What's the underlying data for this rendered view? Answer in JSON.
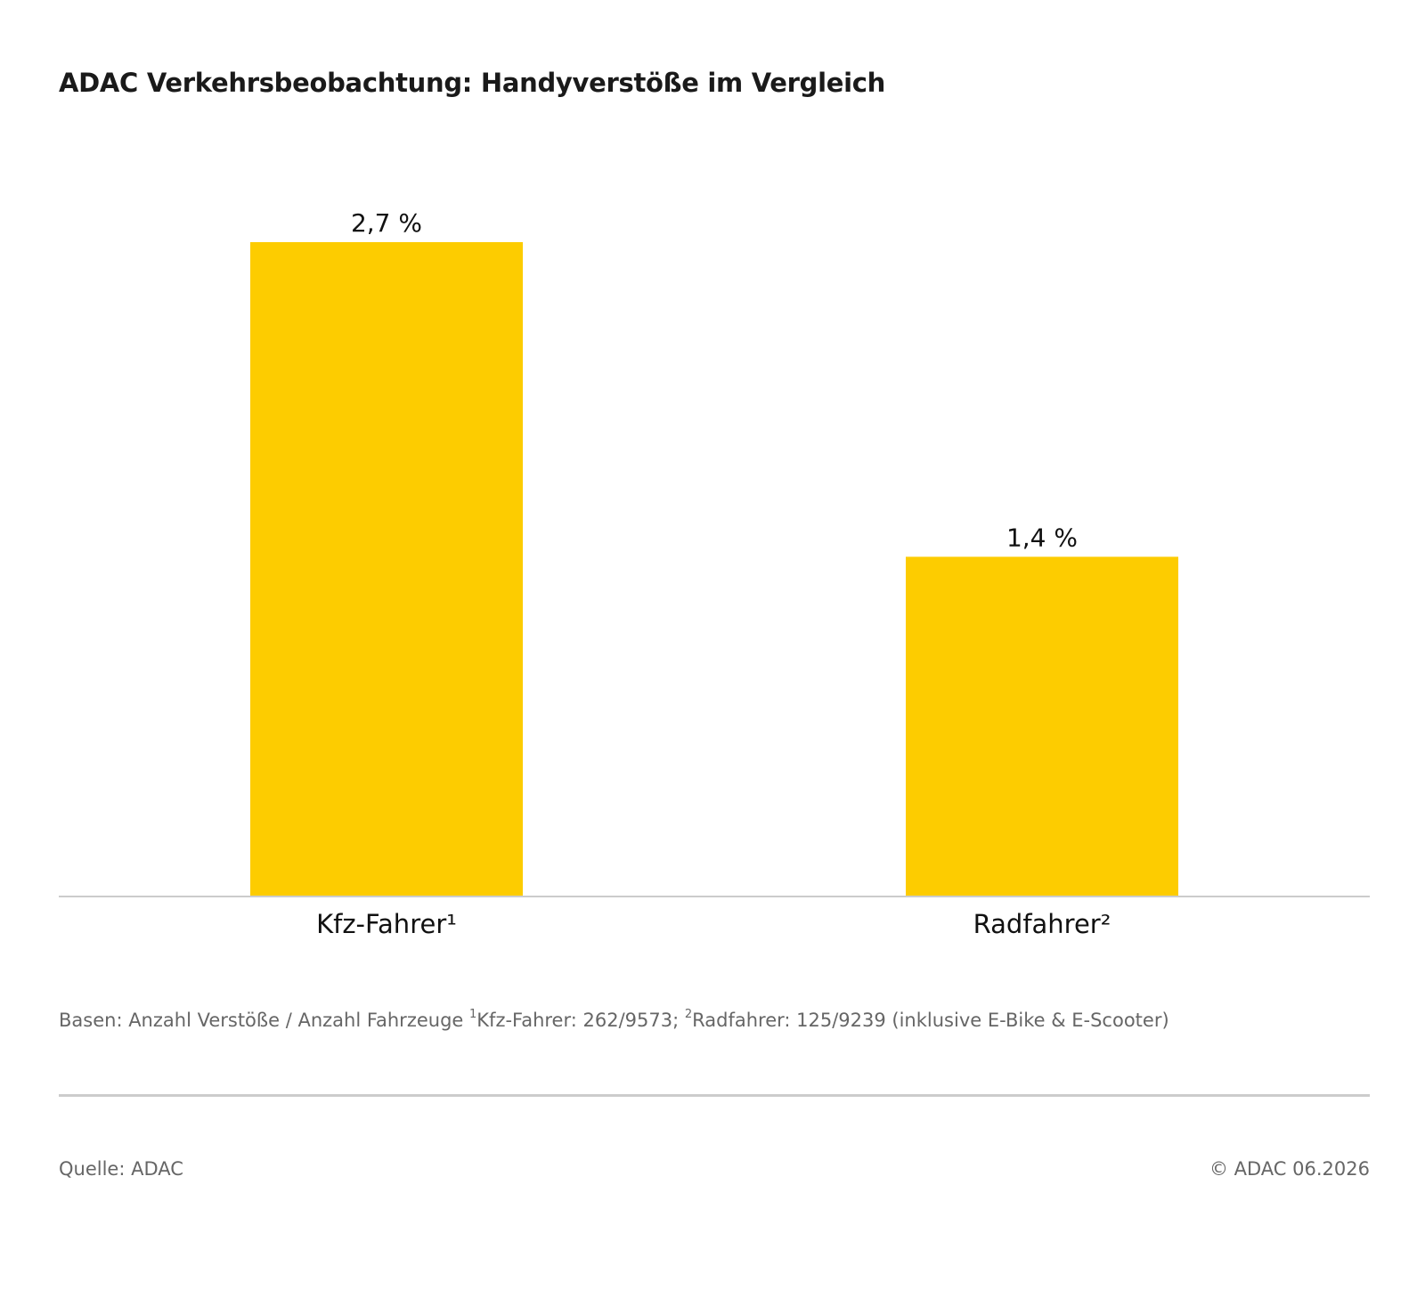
{
  "title": "ADAC Verkehrsbeobachtung: Handyverstöße im Vergleich",
  "chart_data": {
    "type": "bar",
    "categories": [
      "Kfz-Fahrer¹",
      "Radfahrer²"
    ],
    "values": [
      2.7,
      1.4
    ],
    "value_labels": [
      "2,7 %",
      "1,4 %"
    ],
    "ylim": [
      0,
      2.7
    ],
    "grid": false,
    "bar_color": "#FDCC00",
    "baseline_color": "#CCCCCC"
  },
  "footnote": {
    "prefix": "Basen: Anzahl Verstöße / Anzahl Fahrzeuge ",
    "mark1": "1",
    "part1": "Kfz-Fahrer: 262/9573; ",
    "mark2": "2",
    "part2": "Radfahrer: 125/9239 (inklusive E-Bike & E-Scooter)"
  },
  "source": "Quelle: ADAC",
  "copyright": "© ADAC 06.2026"
}
